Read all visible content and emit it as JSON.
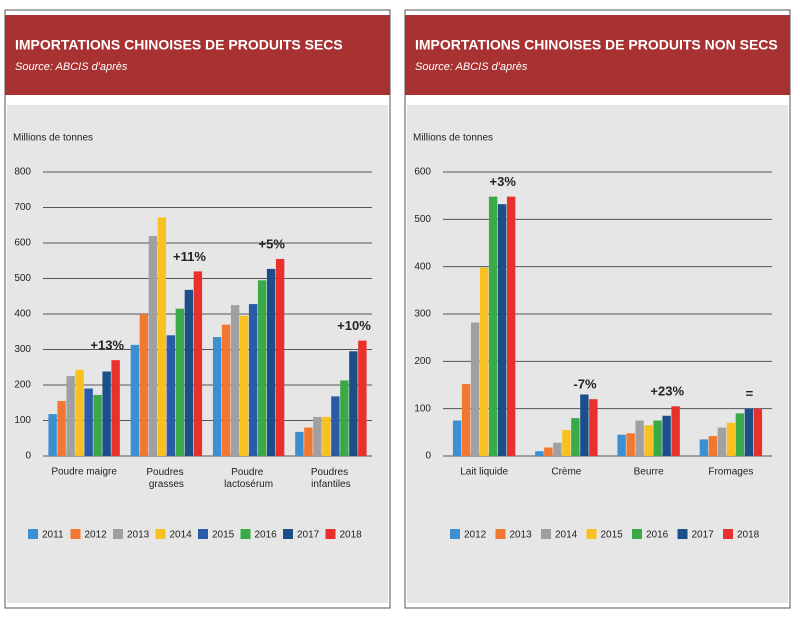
{
  "chart_data": [
    {
      "type": "bar",
      "title": "IMPORTATIONS CHINOISES DE PRODUITS SECS",
      "subtitle": "Source: ABCIS d'après",
      "y_label": "Millions de tonnes",
      "categories": [
        "Poudre maigre",
        "Poudres grasses",
        "Poudre lactosérum",
        "Poudres infantiles"
      ],
      "series": [
        {
          "name": "2011",
          "color": "#3c8fd0",
          "values": [
            118,
            313,
            335,
            68
          ]
        },
        {
          "name": "2012",
          "color": "#f07830",
          "values": [
            155,
            400,
            370,
            80
          ]
        },
        {
          "name": "2013",
          "color": "#a0a0a0",
          "values": [
            225,
            620,
            425,
            110
          ]
        },
        {
          "name": "2014",
          "color": "#f8c020",
          "values": [
            243,
            672,
            395,
            110
          ]
        },
        {
          "name": "2015",
          "color": "#2a5aa8",
          "values": [
            190,
            340,
            428,
            168
          ]
        },
        {
          "name": "2016",
          "color": "#3aaa48",
          "values": [
            172,
            415,
            495,
            213
          ]
        },
        {
          "name": "2017",
          "color": "#1c4f8a",
          "values": [
            238,
            468,
            527,
            295
          ]
        },
        {
          "name": "2018",
          "color": "#e8302c",
          "values": [
            270,
            520,
            555,
            325
          ]
        }
      ],
      "annotations": [
        {
          "text": "+13%",
          "color": "#3aaa48"
        },
        {
          "text": "+11%",
          "color": "#3aaa48"
        },
        {
          "text": "+5%",
          "color": "#3aaa48"
        },
        {
          "text": "+10%",
          "color": "#3aaa48"
        }
      ],
      "ylim": [
        0,
        800
      ],
      "yticks": [
        0,
        100,
        200,
        300,
        400,
        500,
        600,
        700,
        800
      ],
      "grid": true
    },
    {
      "type": "bar",
      "title": "IMPORTATIONS CHINOISES DE PRODUITS NON SECS",
      "subtitle": "Source: ABCIS d'après",
      "y_label": "Millions de tonnes",
      "categories": [
        "Lait liquide",
        "Crème",
        "Beurre",
        "Fromages"
      ],
      "series": [
        {
          "name": "2012",
          "color": "#3c8fd0",
          "values": [
            75,
            10,
            45,
            35
          ]
        },
        {
          "name": "2013",
          "color": "#f07830",
          "values": [
            152,
            18,
            48,
            42
          ]
        },
        {
          "name": "2014",
          "color": "#a0a0a0",
          "values": [
            282,
            28,
            75,
            60
          ]
        },
        {
          "name": "2015",
          "color": "#f8c020",
          "values": [
            398,
            55,
            65,
            70
          ]
        },
        {
          "name": "2016",
          "color": "#3aaa48",
          "values": [
            548,
            80,
            75,
            90
          ]
        },
        {
          "name": "2017",
          "color": "#1c4f8a",
          "values": [
            532,
            130,
            85,
            100
          ]
        },
        {
          "name": "2018",
          "color": "#e8302c",
          "values": [
            548,
            120,
            105,
            100
          ]
        }
      ],
      "annotations": [
        {
          "text": "+3%",
          "color": "#3aaa48"
        },
        {
          "text": "-7%",
          "color": "#e8302c"
        },
        {
          "text": "+23%",
          "color": "#3aaa48"
        },
        {
          "text": "=",
          "color": "#222222"
        }
      ],
      "ylim": [
        0,
        600
      ],
      "yticks": [
        0,
        100,
        200,
        300,
        400,
        500,
        600
      ],
      "grid": true
    }
  ]
}
